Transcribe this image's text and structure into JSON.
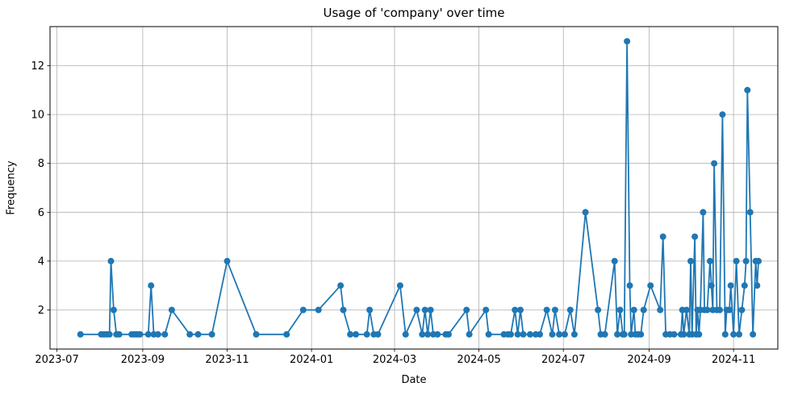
{
  "chart_data": {
    "type": "line",
    "title": "Usage of 'company' over time",
    "xlabel": "Date",
    "ylabel": "Frequency",
    "legend": "none",
    "grid": "on",
    "line_color": "#1f77b4",
    "grid_color": "#b0b0b0",
    "spine_color": "#000000",
    "marker": "circle",
    "x_ticks": [
      "2023-07",
      "2023-09",
      "2023-11",
      "2024-01",
      "2024-03",
      "2024-05",
      "2024-07",
      "2024-09",
      "2024-11"
    ],
    "y_ticks": [
      2,
      4,
      6,
      8,
      10,
      12
    ],
    "x_range": [
      "2023-06-26",
      "2024-12-03"
    ],
    "y_range": [
      0.4,
      13.6
    ],
    "series": [
      {
        "name": "company",
        "dates": [
          "2023-07-18",
          "2023-08-02",
          "2023-08-04",
          "2023-08-06",
          "2023-08-08",
          "2023-08-09",
          "2023-08-11",
          "2023-08-13",
          "2023-08-15",
          "2023-08-24",
          "2023-08-26",
          "2023-08-28",
          "2023-08-30",
          "2023-09-05",
          "2023-09-07",
          "2023-09-09",
          "2023-09-12",
          "2023-09-17",
          "2023-09-22",
          "2023-10-05",
          "2023-10-11",
          "2023-10-21",
          "2023-11-01",
          "2023-11-22",
          "2023-12-14",
          "2023-12-26",
          "2024-01-06",
          "2024-01-22",
          "2024-01-24",
          "2024-01-29",
          "2024-02-02",
          "2024-02-10",
          "2024-02-12",
          "2024-02-15",
          "2024-02-18",
          "2024-03-05",
          "2024-03-09",
          "2024-03-17",
          "2024-03-21",
          "2024-03-23",
          "2024-03-25",
          "2024-03-27",
          "2024-03-29",
          "2024-04-01",
          "2024-04-07",
          "2024-04-09",
          "2024-04-22",
          "2024-04-24",
          "2024-05-06",
          "2024-05-08",
          "2024-05-19",
          "2024-05-22",
          "2024-05-24",
          "2024-05-27",
          "2024-05-29",
          "2024-05-31",
          "2024-06-02",
          "2024-06-07",
          "2024-06-11",
          "2024-06-14",
          "2024-06-19",
          "2024-06-23",
          "2024-06-25",
          "2024-06-28",
          "2024-07-02",
          "2024-07-06",
          "2024-07-09",
          "2024-07-17",
          "2024-07-26",
          "2024-07-28",
          "2024-07-31",
          "2024-08-07",
          "2024-08-09",
          "2024-08-11",
          "2024-08-13",
          "2024-08-14",
          "2024-08-16",
          "2024-08-18",
          "2024-08-19",
          "2024-08-21",
          "2024-08-22",
          "2024-08-24",
          "2024-08-26",
          "2024-08-28",
          "2024-09-02",
          "2024-09-09",
          "2024-09-11",
          "2024-09-13",
          "2024-09-16",
          "2024-09-19",
          "2024-09-24",
          "2024-09-25",
          "2024-09-26",
          "2024-09-28",
          "2024-09-30",
          "2024-10-01",
          "2024-10-02",
          "2024-10-04",
          "2024-10-05",
          "2024-10-06",
          "2024-10-07",
          "2024-10-08",
          "2024-10-10",
          "2024-10-11",
          "2024-10-13",
          "2024-10-15",
          "2024-10-16",
          "2024-10-17",
          "2024-10-18",
          "2024-10-20",
          "2024-10-22",
          "2024-10-24",
          "2024-10-26",
          "2024-10-27",
          "2024-10-29",
          "2024-10-30",
          "2024-11-01",
          "2024-11-03",
          "2024-11-05",
          "2024-11-07",
          "2024-11-09",
          "2024-11-10",
          "2024-11-11",
          "2024-11-13",
          "2024-11-15",
          "2024-11-17",
          "2024-11-18",
          "2024-11-19"
        ],
        "values": [
          1,
          1,
          1,
          1,
          1,
          4,
          2,
          1,
          1,
          1,
          1,
          1,
          1,
          1,
          3,
          1,
          1,
          1,
          2,
          1,
          1,
          1,
          4,
          1,
          1,
          2,
          2,
          3,
          2,
          1,
          1,
          1,
          2,
          1,
          1,
          3,
          1,
          2,
          1,
          2,
          1,
          2,
          1,
          1,
          1,
          1,
          2,
          1,
          2,
          1,
          1,
          1,
          1,
          2,
          1,
          2,
          1,
          1,
          1,
          1,
          2,
          1,
          2,
          1,
          1,
          2,
          1,
          6,
          2,
          1,
          1,
          4,
          1,
          2,
          1,
          1,
          13,
          3,
          1,
          2,
          1,
          1,
          1,
          2,
          3,
          2,
          5,
          1,
          1,
          1,
          1,
          2,
          1,
          2,
          1,
          4,
          1,
          5,
          1,
          2,
          1,
          2,
          6,
          2,
          2,
          4,
          3,
          2,
          8,
          2,
          2,
          10,
          1,
          2,
          2,
          3,
          1,
          4,
          1,
          2,
          3,
          4,
          11,
          6,
          1,
          4,
          3,
          4
        ]
      }
    ]
  }
}
